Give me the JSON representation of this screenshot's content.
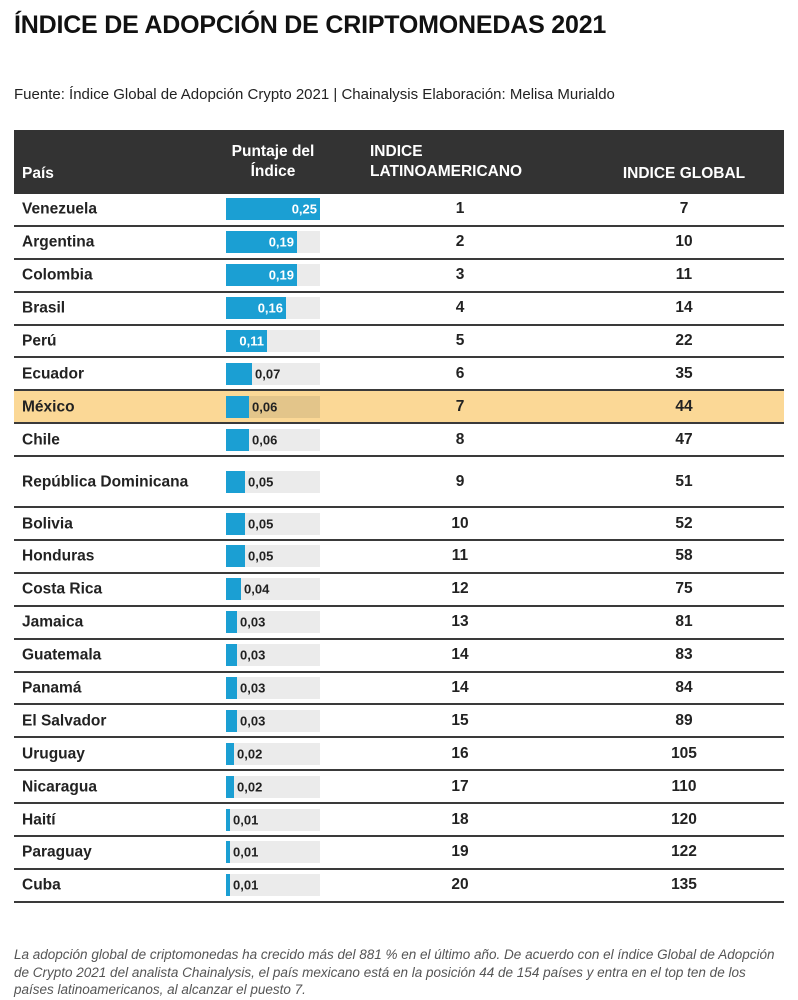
{
  "title": "ÍNDICE DE ADOPCIÓN DE CRIPTOMONEDAS 2021",
  "subtitle": "Fuente: Índice Global de Adopción Crypto 2021 | Chainalysis Elaboración: Melisa Murialdo",
  "footnote": "La adopción global de criptomonedas ha crecido más del 881 % en el último año. De acuerdo con el índice Global de Adopción de Crypto 2021 del analista Chainalysis, el país mexicano está en la posición 44 de 154 países y entra en el top ten de los países latinoamericanos, al alcanzar el puesto 7.",
  "colors": {
    "header_bg": "#333333",
    "bar": "#1b9fd3",
    "bar_track": "#ebebeb",
    "highlight": "#fbd896"
  },
  "chart_data": {
    "type": "table",
    "title": "ÍNDICE DE ADOPCIÓN DE CRIPTOMONEDAS 2021",
    "columns": [
      "País",
      "Puntaje del Índice",
      "INDICE LATINOAMERICANO",
      "INDICE GLOBAL"
    ],
    "score_max": 0.25,
    "highlight_country": "México",
    "rows": [
      {
        "country": "Venezuela",
        "score": 0.25,
        "score_label": "0,25",
        "latam": 1,
        "global": 7
      },
      {
        "country": "Argentina",
        "score": 0.19,
        "score_label": "0,19",
        "latam": 2,
        "global": 10
      },
      {
        "country": "Colombia",
        "score": 0.19,
        "score_label": "0,19",
        "latam": 3,
        "global": 11
      },
      {
        "country": "Brasil",
        "score": 0.16,
        "score_label": "0,16",
        "latam": 4,
        "global": 14
      },
      {
        "country": "Perú",
        "score": 0.11,
        "score_label": "0,11",
        "latam": 5,
        "global": 22
      },
      {
        "country": "Ecuador",
        "score": 0.07,
        "score_label": "0,07",
        "latam": 6,
        "global": 35
      },
      {
        "country": "México",
        "score": 0.06,
        "score_label": "0,06",
        "latam": 7,
        "global": 44
      },
      {
        "country": "Chile",
        "score": 0.06,
        "score_label": "0,06",
        "latam": 8,
        "global": 47
      },
      {
        "country": "República Dominicana",
        "score": 0.05,
        "score_label": "0,05",
        "latam": 9,
        "global": 51
      },
      {
        "country": "Bolivia",
        "score": 0.05,
        "score_label": "0,05",
        "latam": 10,
        "global": 52
      },
      {
        "country": "Honduras",
        "score": 0.05,
        "score_label": "0,05",
        "latam": 11,
        "global": 58
      },
      {
        "country": "Costa Rica",
        "score": 0.04,
        "score_label": "0,04",
        "latam": 12,
        "global": 75
      },
      {
        "country": "Jamaica",
        "score": 0.03,
        "score_label": "0,03",
        "latam": 13,
        "global": 81
      },
      {
        "country": "Guatemala",
        "score": 0.03,
        "score_label": "0,03",
        "latam": 14,
        "global": 83
      },
      {
        "country": "Panamá",
        "score": 0.03,
        "score_label": "0,03",
        "latam": 14,
        "global": 84
      },
      {
        "country": "El Salvador",
        "score": 0.03,
        "score_label": "0,03",
        "latam": 15,
        "global": 89
      },
      {
        "country": "Uruguay",
        "score": 0.02,
        "score_label": "0,02",
        "latam": 16,
        "global": 105
      },
      {
        "country": "Nicaragua",
        "score": 0.02,
        "score_label": "0,02",
        "latam": 17,
        "global": 110
      },
      {
        "country": "Haití",
        "score": 0.01,
        "score_label": "0,01",
        "latam": 18,
        "global": 120
      },
      {
        "country": "Paraguay",
        "score": 0.01,
        "score_label": "0,01",
        "latam": 19,
        "global": 122
      },
      {
        "country": "Cuba",
        "score": 0.01,
        "score_label": "0,01",
        "latam": 20,
        "global": 135
      }
    ]
  }
}
